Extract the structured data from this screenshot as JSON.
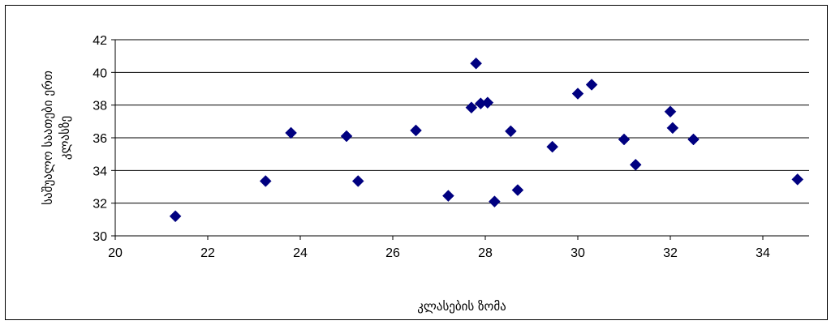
{
  "chart_data": {
    "type": "scatter",
    "title": "",
    "xlabel": "კლასების ზომა",
    "ylabel_lines": [
      "საშუალო საათები ერთ",
      "კლასზე"
    ],
    "xlim": [
      20,
      35
    ],
    "ylim": [
      30,
      42
    ],
    "x_ticks": [
      20,
      22,
      24,
      26,
      28,
      30,
      32,
      34
    ],
    "y_ticks": [
      30,
      32,
      34,
      36,
      38,
      40,
      42
    ],
    "grid": "horizontal",
    "legend": "none",
    "marker": "diamond",
    "marker_color": "#000080",
    "points": [
      {
        "x": 21.3,
        "y": 31.2
      },
      {
        "x": 23.25,
        "y": 33.35
      },
      {
        "x": 23.8,
        "y": 36.3
      },
      {
        "x": 25.0,
        "y": 36.1
      },
      {
        "x": 25.25,
        "y": 33.35
      },
      {
        "x": 26.5,
        "y": 36.45
      },
      {
        "x": 27.2,
        "y": 32.45
      },
      {
        "x": 27.7,
        "y": 37.85
      },
      {
        "x": 27.8,
        "y": 40.55
      },
      {
        "x": 27.9,
        "y": 38.1
      },
      {
        "x": 28.05,
        "y": 38.15
      },
      {
        "x": 28.2,
        "y": 32.1
      },
      {
        "x": 28.55,
        "y": 36.4
      },
      {
        "x": 28.7,
        "y": 32.8
      },
      {
        "x": 29.45,
        "y": 35.45
      },
      {
        "x": 30.0,
        "y": 38.7
      },
      {
        "x": 30.3,
        "y": 39.25
      },
      {
        "x": 31.0,
        "y": 35.9
      },
      {
        "x": 31.25,
        "y": 34.35
      },
      {
        "x": 32.0,
        "y": 37.6
      },
      {
        "x": 32.05,
        "y": 36.6
      },
      {
        "x": 32.5,
        "y": 35.9
      },
      {
        "x": 34.75,
        "y": 33.45
      }
    ]
  }
}
